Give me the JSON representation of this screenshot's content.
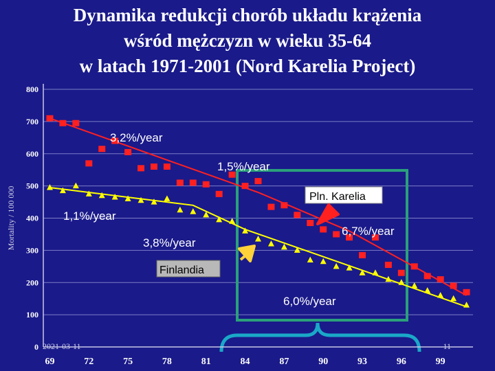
{
  "title_lines": [
    "Dynamika redukcji chorób układu krążenia",
    "wśród mężczyzn w wieku 35-64",
    "w latach 1971-2001 (Nord Karelia Project)"
  ],
  "footer": {
    "date": "2021-03-11",
    "page": "11"
  },
  "colors": {
    "background": "#1a1a8a",
    "karelia": "#ff2020",
    "finland": "#ffff00",
    "highlight_box": "#2aa07a",
    "arrow_karelia": "#ff2020",
    "arrow_finland": "#ffd23a"
  },
  "chart_data": {
    "type": "scatter",
    "title": "Dynamika redukcji chorób układu krążenia wśród mężczyzn w wieku 35-64 w latach 1971-2001 (Nord Karelia Project)",
    "ylabel": "Mortality / 100 000",
    "xlabel": "",
    "xlim": [
      1968.5,
      2001.5
    ],
    "ylim": [
      0,
      800
    ],
    "x_ticks": [
      "69",
      "72",
      "75",
      "78",
      "81",
      "84",
      "87",
      "90",
      "93",
      "96",
      "99"
    ],
    "y_ticks": [
      "0",
      "100",
      "200",
      "300",
      "400",
      "500",
      "600",
      "700",
      "800"
    ],
    "grid": "horizontal",
    "series": [
      {
        "name": "Pln. Karelia",
        "marker": "square",
        "x": [
          1969,
          1970,
          1971,
          1972,
          1973,
          1974,
          1975,
          1976,
          1977,
          1978,
          1979,
          1980,
          1981,
          1982,
          1983,
          1984,
          1985,
          1986,
          1987,
          1988,
          1989,
          1990,
          1991,
          1992,
          1993,
          1994,
          1995,
          1996,
          1997,
          1998,
          1999,
          2000,
          2001
        ],
        "y": [
          710,
          695,
          695,
          570,
          615,
          640,
          605,
          555,
          560,
          560,
          510,
          510,
          505,
          475,
          535,
          500,
          515,
          435,
          440,
          410,
          385,
          365,
          350,
          340,
          285,
          340,
          255,
          230,
          250,
          220,
          210,
          190,
          170
        ],
        "trend": [
          [
            1969,
            710
          ],
          [
            1985,
            480
          ],
          [
            1992,
            360
          ],
          [
            2001,
            160
          ]
        ]
      },
      {
        "name": "Finlandia",
        "marker": "triangle",
        "x": [
          1969,
          1970,
          1971,
          1972,
          1973,
          1974,
          1975,
          1976,
          1977,
          1978,
          1979,
          1980,
          1981,
          1982,
          1983,
          1984,
          1985,
          1986,
          1987,
          1988,
          1989,
          1990,
          1991,
          1992,
          1993,
          1994,
          1995,
          1996,
          1997,
          1998,
          1999,
          2000,
          2001
        ],
        "y": [
          495,
          485,
          500,
          475,
          470,
          465,
          460,
          455,
          450,
          460,
          425,
          420,
          410,
          395,
          390,
          360,
          335,
          320,
          310,
          300,
          270,
          265,
          250,
          245,
          230,
          230,
          210,
          200,
          190,
          175,
          160,
          150,
          130
        ],
        "trend": [
          [
            1969,
            495
          ],
          [
            1980,
            440
          ],
          [
            1984,
            365
          ],
          [
            2001,
            125
          ]
        ]
      }
    ],
    "annotations": [
      {
        "text": "3,2%/year",
        "x": 1975.2,
        "y": 638
      },
      {
        "text": "1,5%/year",
        "x": 1981.5,
        "y": 545
      },
      {
        "text": "1,1%/year",
        "x": 1970.8,
        "y": 410
      },
      {
        "text": "3,8%/year",
        "x": 1976.6,
        "y": 318
      },
      {
        "text": "6,7%/year",
        "x": 1993.5,
        "y": 378
      },
      {
        "text": "6,0%/year",
        "x": 1889.2,
        "y": 125,
        "_unused": true
      },
      {
        "text": "6,0%/year",
        "x": 1889.9,
        "y": 126,
        "_unused": true
      }
    ],
    "labels": [
      {
        "text": "Pln. Karelia",
        "box": "white"
      },
      {
        "text": "Finlandia",
        "box": "grey"
      }
    ]
  }
}
